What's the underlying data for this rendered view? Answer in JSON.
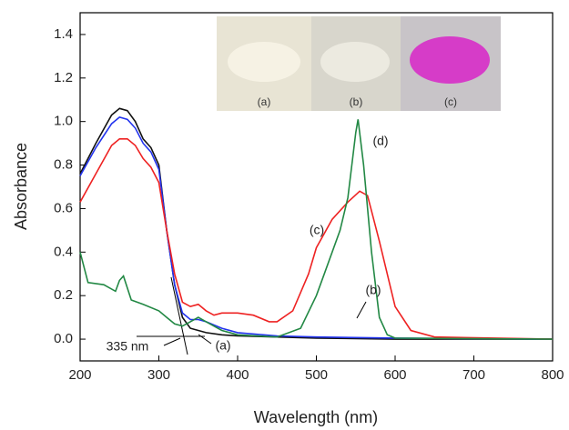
{
  "chart_data": {
    "type": "line",
    "xlabel": "Wavelength (nm)",
    "ylabel": "Absorbance",
    "xlim": [
      200,
      800
    ],
    "ylim": [
      -0.1,
      1.5
    ],
    "xticks": [
      200,
      300,
      400,
      500,
      600,
      700,
      800
    ],
    "yticks": [
      {
        "value": 0,
        "label": "0.0"
      },
      0.2,
      0.4,
      0.6,
      0.8,
      {
        "value": 1,
        "label": "1.0"
      },
      1.2,
      1.4
    ],
    "annotations": [
      "(a)",
      "(b)",
      "(c)",
      "(d)",
      "335 nm"
    ],
    "photo_labels": [
      "(a)",
      "(b)",
      "(c)"
    ],
    "series": [
      {
        "color": "#111111",
        "x": [
          200,
          220,
          240,
          250,
          260,
          270,
          280,
          290,
          300,
          310,
          320,
          330,
          340,
          350,
          360,
          380,
          400,
          450,
          500,
          600,
          800
        ],
        "values": [
          0.76,
          0.9,
          1.03,
          1.06,
          1.05,
          1.0,
          0.92,
          0.88,
          0.8,
          0.5,
          0.25,
          0.1,
          0.05,
          0.04,
          0.03,
          0.02,
          0.015,
          0.01,
          0.005,
          0.0,
          0.0
        ]
      },
      {
        "color": "#2233ee",
        "x": [
          200,
          220,
          240,
          250,
          260,
          270,
          280,
          290,
          300,
          310,
          320,
          330,
          340,
          350,
          360,
          380,
          400,
          450,
          500,
          600,
          800
        ],
        "values": [
          0.75,
          0.88,
          0.99,
          1.02,
          1.01,
          0.97,
          0.9,
          0.86,
          0.78,
          0.5,
          0.25,
          0.12,
          0.09,
          0.09,
          0.08,
          0.05,
          0.03,
          0.015,
          0.01,
          0.005,
          0.0
        ]
      },
      {
        "color": "#ee2222",
        "x": [
          200,
          220,
          240,
          250,
          260,
          270,
          280,
          290,
          300,
          310,
          320,
          330,
          340,
          350,
          360,
          370,
          380,
          400,
          420,
          440,
          450,
          470,
          490,
          500,
          520,
          540,
          555,
          565,
          580,
          600,
          620,
          650,
          800
        ],
        "values": [
          0.63,
          0.76,
          0.89,
          0.92,
          0.92,
          0.89,
          0.83,
          0.79,
          0.72,
          0.5,
          0.3,
          0.17,
          0.15,
          0.16,
          0.13,
          0.11,
          0.12,
          0.12,
          0.11,
          0.08,
          0.08,
          0.13,
          0.3,
          0.42,
          0.55,
          0.63,
          0.68,
          0.66,
          0.45,
          0.15,
          0.04,
          0.01,
          0.0
        ]
      },
      {
        "color": "#228844",
        "x": [
          200,
          210,
          230,
          245,
          250,
          255,
          265,
          280,
          300,
          310,
          320,
          330,
          340,
          350,
          360,
          380,
          400,
          450,
          480,
          500,
          510,
          530,
          540,
          550,
          553,
          560,
          570,
          580,
          590,
          600,
          800
        ],
        "values": [
          0.4,
          0.26,
          0.25,
          0.22,
          0.27,
          0.29,
          0.18,
          0.16,
          0.13,
          0.1,
          0.07,
          0.06,
          0.08,
          0.1,
          0.08,
          0.04,
          0.02,
          0.01,
          0.05,
          0.2,
          0.3,
          0.5,
          0.65,
          0.95,
          1.01,
          0.8,
          0.4,
          0.1,
          0.02,
          0.005,
          0.0
        ]
      }
    ]
  }
}
